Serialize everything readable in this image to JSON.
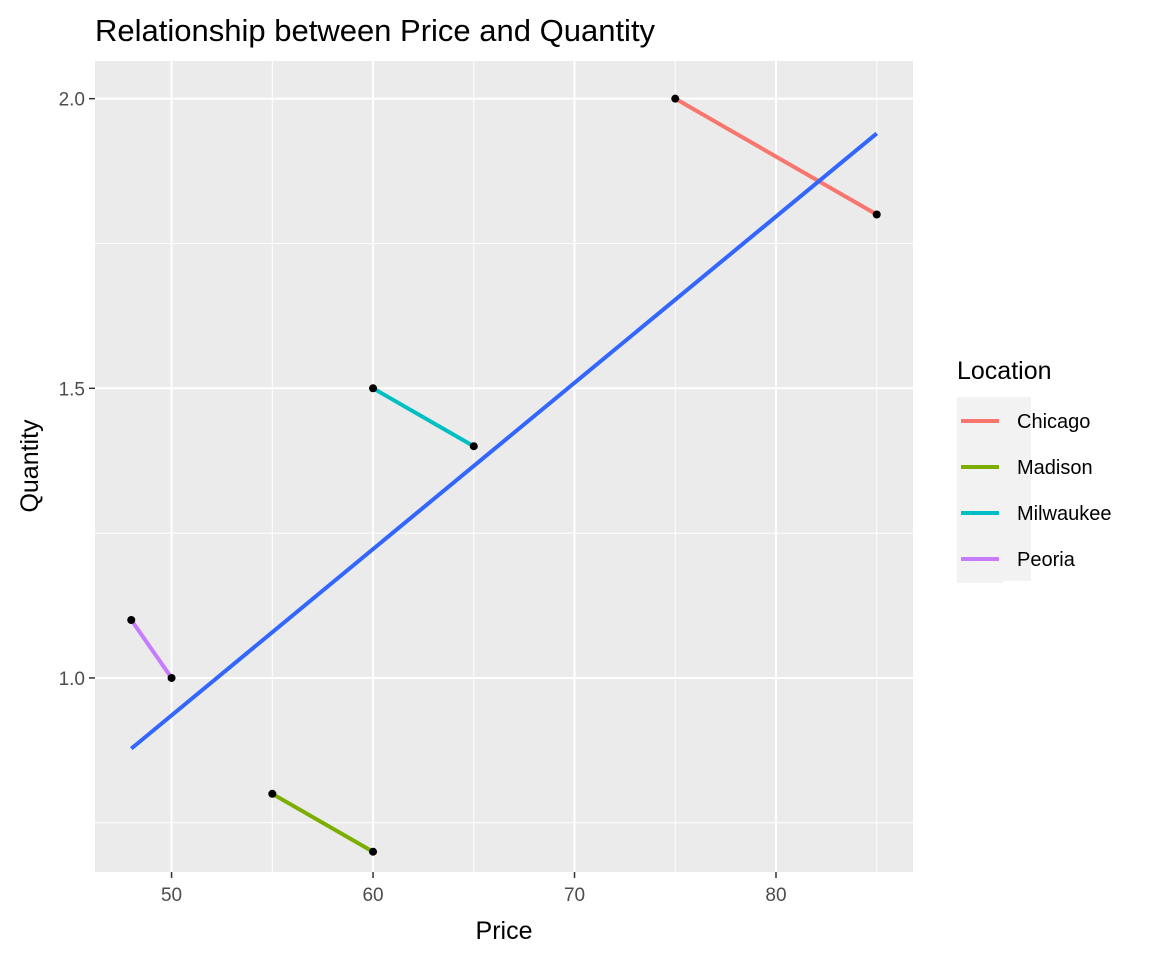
{
  "chart_data": {
    "type": "line",
    "title": "Relationship between Price and Quantity",
    "xlabel": "Price",
    "ylabel": "Quantity",
    "xlim": [
      46.2,
      86.8
    ],
    "ylim": [
      0.665,
      2.065
    ],
    "x_ticks": [
      50,
      60,
      70,
      80
    ],
    "y_ticks": [
      1.0,
      1.5,
      2.0
    ],
    "x_tick_labels": [
      "50",
      "60",
      "70",
      "80"
    ],
    "y_tick_labels": [
      "1.0",
      "1.5",
      "2.0"
    ],
    "grid": true,
    "legend": {
      "title": "Location",
      "placement": "right"
    },
    "series": [
      {
        "name": "Chicago",
        "color": "#F8766D",
        "points": [
          [
            75,
            2.0
          ],
          [
            85,
            1.8
          ]
        ]
      },
      {
        "name": "Madison",
        "color": "#7CAE00",
        "points": [
          [
            55,
            0.8
          ],
          [
            60,
            0.7
          ]
        ]
      },
      {
        "name": "Milwaukee",
        "color": "#00BFC4",
        "points": [
          [
            60,
            1.5
          ],
          [
            65,
            1.4
          ]
        ]
      },
      {
        "name": "Peoria",
        "color": "#C77CFF",
        "points": [
          [
            48,
            1.1
          ],
          [
            50,
            1.0
          ]
        ]
      }
    ],
    "trend_line": {
      "color": "#3366FF",
      "points": [
        [
          48,
          0.878
        ],
        [
          85,
          1.94
        ]
      ]
    },
    "point_color": "#000000"
  }
}
